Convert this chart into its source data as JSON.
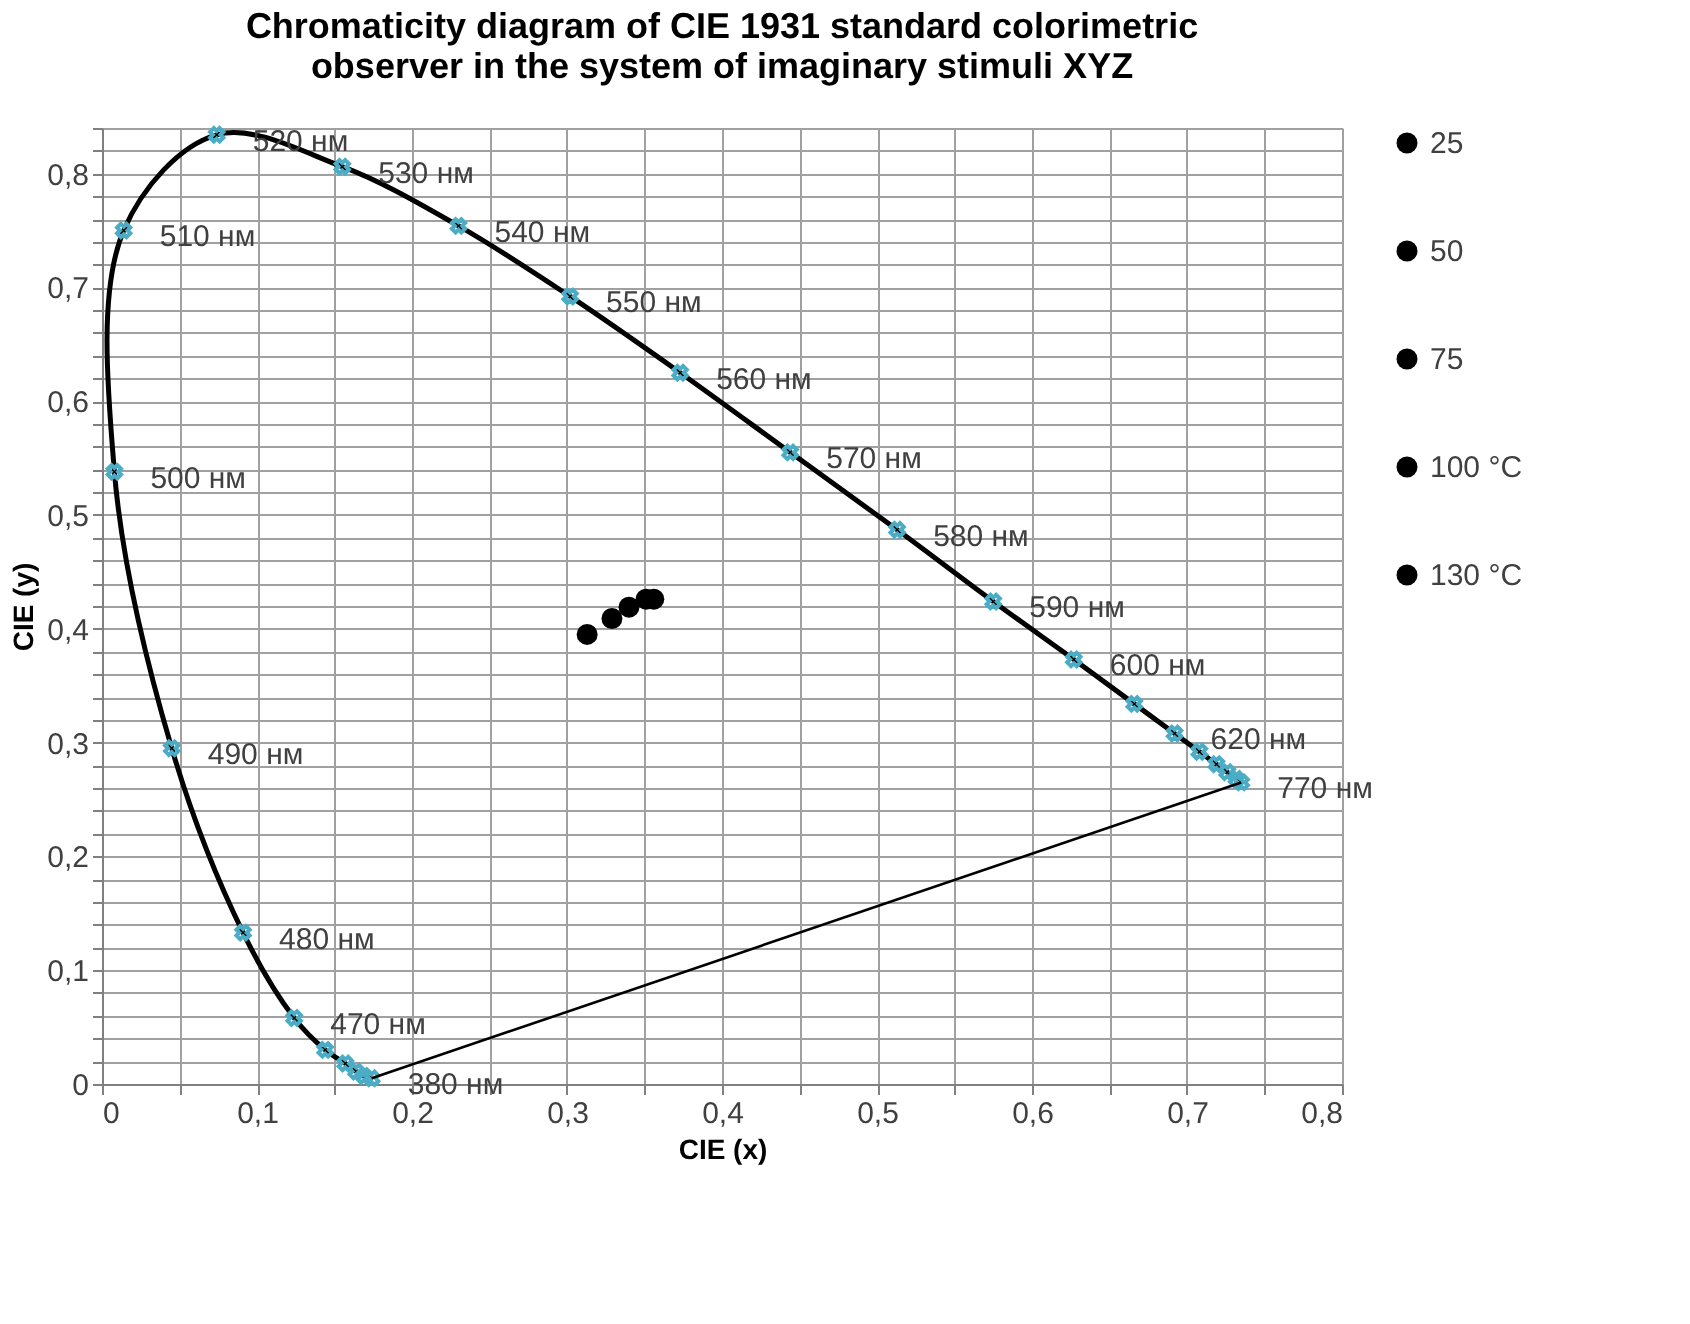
{
  "chart_data": {
    "type": "line",
    "title": [
      "Chromaticity diagram of CIE 1931 standard colorimetric",
      "observer in the system of imaginary stimuli XYZ"
    ],
    "xlabel": "CIE (x)",
    "ylabel": "CIE (y)",
    "xlim": [
      0,
      0.8
    ],
    "ylim": [
      0,
      0.84
    ],
    "xticks": [
      0,
      {
        "value": 0.05,
        "label": null
      },
      {
        "value": 0.1,
        "label": "0,1"
      },
      {
        "value": 0.15,
        "label": null
      },
      {
        "value": 0.2,
        "label": "0,2"
      },
      {
        "value": 0.25,
        "label": null
      },
      {
        "value": 0.3,
        "label": "0,3"
      },
      {
        "value": 0.35,
        "label": null
      },
      {
        "value": 0.4,
        "label": "0,4"
      },
      {
        "value": 0.45,
        "label": null
      },
      {
        "value": 0.5,
        "label": "0,5"
      },
      {
        "value": 0.55,
        "label": null
      },
      {
        "value": 0.6,
        "label": "0,6"
      },
      {
        "value": 0.65,
        "label": null
      },
      {
        "value": 0.7,
        "label": "0,7"
      },
      {
        "value": 0.75,
        "label": null
      },
      {
        "value": 0.8,
        "label": "0,8"
      }
    ],
    "yticks": [
      0,
      {
        "value": 0.02,
        "label": null
      },
      {
        "value": 0.04,
        "label": null
      },
      {
        "value": 0.06,
        "label": null
      },
      {
        "value": 0.08,
        "label": null
      },
      {
        "value": 0.1,
        "label": "0,1"
      },
      {
        "value": 0.12,
        "label": null
      },
      {
        "value": 0.14,
        "label": null
      },
      {
        "value": 0.16,
        "label": null
      },
      {
        "value": 0.18,
        "label": null
      },
      {
        "value": 0.2,
        "label": "0,2"
      },
      {
        "value": 0.22,
        "label": null
      },
      {
        "value": 0.24,
        "label": null
      },
      {
        "value": 0.26,
        "label": null
      },
      {
        "value": 0.28,
        "label": null
      },
      {
        "value": 0.3,
        "label": "0,3"
      },
      {
        "value": 0.32,
        "label": null
      },
      {
        "value": 0.34,
        "label": null
      },
      {
        "value": 0.36,
        "label": null
      },
      {
        "value": 0.38,
        "label": null
      },
      {
        "value": 0.4,
        "label": "0,4"
      },
      {
        "value": 0.42,
        "label": null
      },
      {
        "value": 0.44,
        "label": null
      },
      {
        "value": 0.46,
        "label": null
      },
      {
        "value": 0.48,
        "label": null
      },
      {
        "value": 0.5,
        "label": "0,5"
      },
      {
        "value": 0.52,
        "label": null
      },
      {
        "value": 0.54,
        "label": null
      },
      {
        "value": 0.56,
        "label": null
      },
      {
        "value": 0.58,
        "label": null
      },
      {
        "value": 0.6,
        "label": "0,6"
      },
      {
        "value": 0.62,
        "label": null
      },
      {
        "value": 0.64,
        "label": null
      },
      {
        "value": 0.66,
        "label": null
      },
      {
        "value": 0.68,
        "label": null
      },
      {
        "value": 0.7,
        "label": "0,7"
      },
      {
        "value": 0.72,
        "label": null
      },
      {
        "value": 0.74,
        "label": null
      },
      {
        "value": 0.76,
        "label": null
      },
      {
        "value": 0.78,
        "label": null
      },
      {
        "value": 0.8,
        "label": "0,8"
      },
      {
        "value": 0.82,
        "label": null
      },
      {
        "value": 0.84,
        "label": null
      }
    ],
    "grid": true,
    "legend": "right",
    "series": [
      {
        "color": "#000000",
        "marker": "none",
        "x": [
          0.174,
          0.169,
          0.164,
          0.157,
          0.144,
          0.124,
          0.091,
          0.045,
          0.008,
          0.014,
          0.074,
          0.155,
          0.23,
          0.302,
          0.373,
          0.444,
          0.513,
          0.575,
          0.627,
          0.666,
          0.692,
          0.708,
          0.719,
          0.726,
          0.732,
          0.735
        ],
        "values": [
          0.005,
          0.007,
          0.011,
          0.018,
          0.03,
          0.058,
          0.133,
          0.295,
          0.538,
          0.75,
          0.834,
          0.806,
          0.754,
          0.692,
          0.625,
          0.555,
          0.487,
          0.424,
          0.373,
          0.334,
          0.308,
          0.292,
          0.281,
          0.274,
          0.268,
          0.265
        ]
      },
      {
        "type": "scatter",
        "color": "#4bacc6",
        "marker": "cross",
        "x": [
          0.174,
          0.169,
          0.164,
          0.157,
          0.144,
          0.124,
          0.091,
          0.045,
          0.008,
          0.014,
          0.074,
          0.155,
          0.23,
          0.302,
          0.373,
          0.444,
          0.513,
          0.575,
          0.627,
          0.666,
          0.692,
          0.708,
          0.719,
          0.726,
          0.732,
          0.735
        ],
        "values": [
          0.005,
          0.007,
          0.011,
          0.018,
          0.03,
          0.058,
          0.133,
          0.295,
          0.538,
          0.75,
          0.834,
          0.806,
          0.754,
          0.692,
          0.625,
          0.555,
          0.487,
          0.424,
          0.373,
          0.334,
          0.308,
          0.292,
          0.281,
          0.274,
          0.268,
          0.265
        ]
      },
      {
        "color": "#000000",
        "marker": "none",
        "x": [
          0.735,
          0.174
        ],
        "values": [
          0.265,
          0.005
        ]
      },
      {
        "type": "scatter",
        "name": "25",
        "color": "#000000",
        "marker": "circle",
        "x": [
          0.313
        ],
        "values": [
          0.395
        ]
      },
      {
        "type": "scatter",
        "name": "50",
        "color": "#000000",
        "marker": "circle",
        "x": [
          0.329
        ],
        "values": [
          0.409
        ]
      },
      {
        "type": "scatter",
        "name": "75",
        "color": "#000000",
        "marker": "circle",
        "x": [
          0.34
        ],
        "values": [
          0.419
        ]
      },
      {
        "type": "scatter",
        "name": "100 °C",
        "color": "#000000",
        "marker": "circle",
        "x": [
          0.351
        ],
        "values": [
          0.426
        ]
      },
      {
        "type": "scatter",
        "name": "130 °C",
        "color": "#000000",
        "marker": "circle",
        "x": [
          0.356
        ],
        "values": [
          0.426
        ]
      }
    ],
    "annotations": [
      {
        "text": "380 нм",
        "x": 0.174,
        "y": 0.005
      },
      {
        "text": "470 нм",
        "x": 0.124,
        "y": 0.058
      },
      {
        "text": "480 нм",
        "x": 0.091,
        "y": 0.133
      },
      {
        "text": "490 нм",
        "x": 0.045,
        "y": 0.295
      },
      {
        "text": "500 нм",
        "x": 0.008,
        "y": 0.538
      },
      {
        "text": "510 нм",
        "x": 0.014,
        "y": 0.75
      },
      {
        "text": "520 нм",
        "x": 0.074,
        "y": 0.834
      },
      {
        "text": "530 нм",
        "x": 0.155,
        "y": 0.806
      },
      {
        "text": "540 нм",
        "x": 0.23,
        "y": 0.754
      },
      {
        "text": "550 нм",
        "x": 0.302,
        "y": 0.692
      },
      {
        "text": "560 нм",
        "x": 0.373,
        "y": 0.625
      },
      {
        "text": "570 нм",
        "x": 0.444,
        "y": 0.555
      },
      {
        "text": "580 нм",
        "x": 0.513,
        "y": 0.487
      },
      {
        "text": "590 нм",
        "x": 0.575,
        "y": 0.424
      },
      {
        "text": "600 нм",
        "x": 0.627,
        "y": 0.373
      },
      {
        "text": "620 нм",
        "x": 0.692,
        "y": 0.308
      },
      {
        "text": "770 нм",
        "x": 0.735,
        "y": 0.265
      }
    ]
  }
}
